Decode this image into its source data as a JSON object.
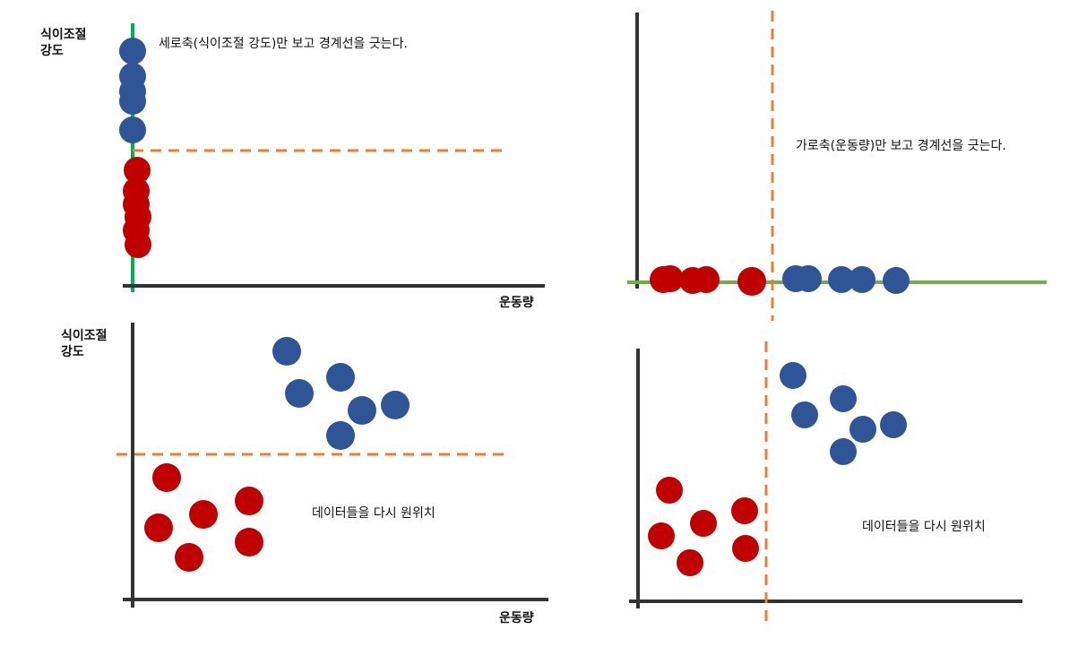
{
  "panel_tl": {
    "y_label_line1": "식이조절",
    "y_label_line2": "강도",
    "x_label": "운동량",
    "note": "세로축(식이조절 강도)만 보고 경계선을 긋는다."
  },
  "panel_tr": {
    "note": "가로축(운동량)만 보고 경계선을 긋는다."
  },
  "panel_bl": {
    "y_label_line1": "식이조절",
    "y_label_line2": "강도",
    "x_label": "운동량",
    "note": "데이터들을 다시 원위치"
  },
  "panel_br": {
    "note": "데이터들을 다시 원위치"
  },
  "colors": {
    "axis": "#333333",
    "blue_point": "#2F5597",
    "red_point": "#C00000",
    "boundary": "#ED7D31",
    "projection_green_v": "#00B050",
    "projection_green_h": "#70AD47"
  }
}
